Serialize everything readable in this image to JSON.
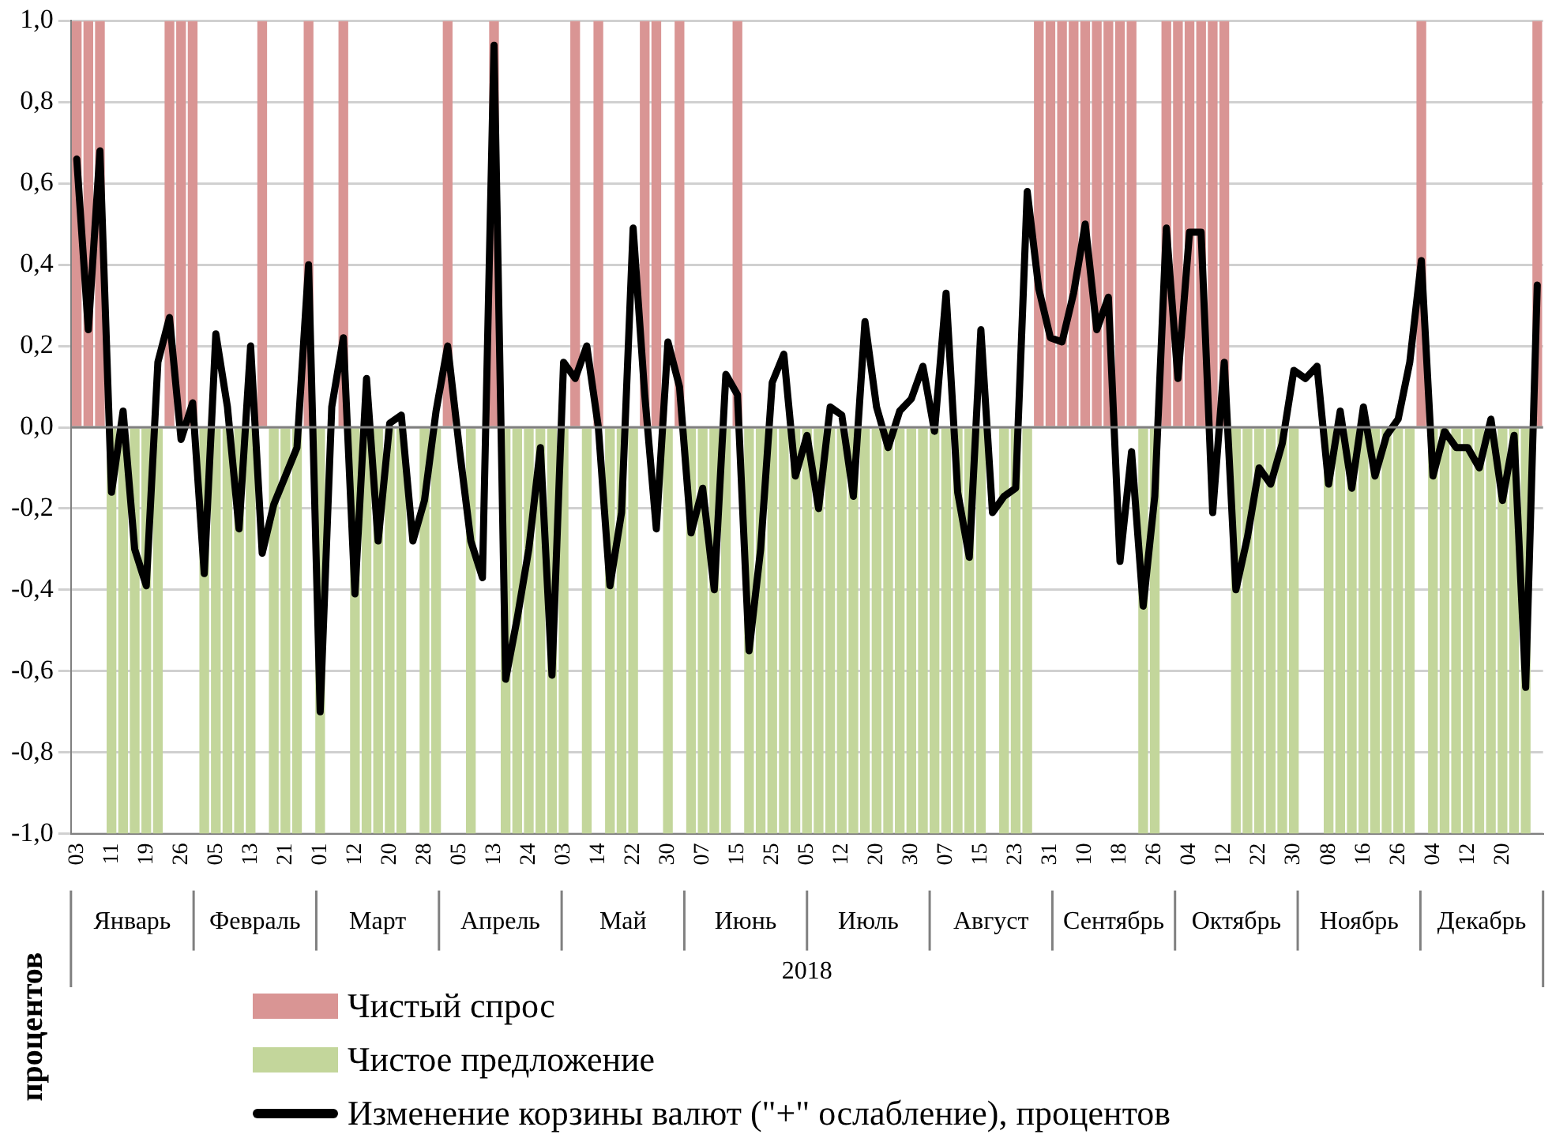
{
  "chart_data": {
    "type": "bar",
    "xlabel": "2018",
    "ylabel": "процентов",
    "categories": [
      "03",
      null,
      null,
      "11",
      null,
      null,
      "19",
      null,
      null,
      "26",
      null,
      null,
      "05",
      null,
      null,
      "13",
      null,
      null,
      "21",
      null,
      null,
      "01",
      null,
      null,
      "12",
      null,
      null,
      "20",
      null,
      null,
      "28",
      null,
      null,
      "05",
      null,
      null,
      "13",
      null,
      null,
      "24",
      null,
      null,
      "03",
      null,
      null,
      "14",
      null,
      null,
      "22",
      null,
      null,
      "30",
      null,
      null,
      "07",
      null,
      null,
      "15",
      null,
      null,
      "25",
      null,
      null,
      "05",
      null,
      null,
      "12",
      null,
      null,
      "20",
      null,
      null,
      "30",
      null,
      null,
      "07",
      null,
      null,
      "15",
      null,
      null,
      "23",
      null,
      null,
      "31",
      null,
      null,
      "10",
      null,
      null,
      "18",
      null,
      null,
      "26",
      null,
      null,
      "04",
      null,
      null,
      "12",
      null,
      null,
      "22",
      null,
      null,
      "30",
      null,
      null,
      "08",
      null,
      null,
      "16",
      null,
      null,
      "26",
      null,
      null,
      "04",
      null,
      null,
      "12",
      null,
      null,
      "20",
      null,
      null,
      null
    ],
    "series": [
      {
        "name": "Чистый спрос",
        "color": "#d99594",
        "values": [
          1,
          1,
          1,
          null,
          null,
          null,
          null,
          null,
          1,
          1,
          1,
          null,
          null,
          null,
          null,
          null,
          1,
          null,
          null,
          null,
          1,
          null,
          null,
          1,
          null,
          null,
          null,
          null,
          null,
          null,
          null,
          null,
          1,
          null,
          null,
          null,
          1,
          null,
          null,
          null,
          null,
          null,
          null,
          1,
          null,
          1,
          null,
          null,
          null,
          1,
          1,
          null,
          1,
          null,
          null,
          null,
          null,
          1,
          null,
          null,
          null,
          null,
          null,
          null,
          null,
          null,
          null,
          null,
          null,
          null,
          null,
          null,
          null,
          null,
          null,
          null,
          null,
          null,
          null,
          null,
          null,
          null,
          null,
          1,
          1,
          1,
          1,
          1,
          1,
          1,
          1,
          1,
          null,
          null,
          1,
          1,
          1,
          1,
          1,
          1,
          null,
          null,
          null,
          null,
          null,
          null,
          null,
          null,
          null,
          null,
          null,
          null,
          null,
          null,
          null,
          null,
          1,
          null,
          null,
          null,
          null,
          null,
          null,
          null,
          null,
          null,
          1
        ]
      },
      {
        "name": "Чистое предложение",
        "color": "#c3d69b",
        "values": [
          null,
          null,
          null,
          -1,
          -1,
          -1,
          -1,
          -1,
          null,
          null,
          null,
          -1,
          -1,
          -1,
          -1,
          -1,
          null,
          -1,
          -1,
          -1,
          null,
          -1,
          null,
          null,
          -1,
          -1,
          -1,
          -1,
          -1,
          null,
          -1,
          -1,
          null,
          null,
          -1,
          null,
          null,
          -1,
          -1,
          -1,
          -1,
          -1,
          -1,
          null,
          -1,
          null,
          -1,
          -1,
          -1,
          null,
          null,
          -1,
          null,
          -1,
          -1,
          -1,
          -1,
          null,
          -1,
          -1,
          -1,
          -1,
          -1,
          -1,
          -1,
          -1,
          -1,
          -1,
          -1,
          -1,
          -1,
          -1,
          -1,
          -1,
          -1,
          -1,
          -1,
          -1,
          -1,
          null,
          -1,
          -1,
          -1,
          null,
          null,
          null,
          null,
          null,
          null,
          null,
          null,
          null,
          -1,
          -1,
          null,
          null,
          null,
          null,
          null,
          null,
          -1,
          -1,
          -1,
          -1,
          -1,
          -1,
          null,
          null,
          -1,
          -1,
          -1,
          -1,
          -1,
          -1,
          -1,
          -1,
          null,
          -1,
          -1,
          -1,
          -1,
          -1,
          -1,
          -1,
          -1,
          -1,
          null
        ]
      },
      {
        "name": "Изменение корзины валют (\"+\" ослабление), процентов",
        "type": "line",
        "color": "#000000",
        "values": [
          0.66,
          0.24,
          0.68,
          -0.16,
          0.04,
          -0.3,
          -0.39,
          0.16,
          0.27,
          -0.03,
          0.06,
          -0.36,
          0.23,
          0.05,
          -0.25,
          0.2,
          -0.31,
          -0.19,
          -0.12,
          -0.05,
          0.4,
          -0.7,
          0.05,
          0.22,
          -0.41,
          0.12,
          -0.28,
          0.01,
          0.03,
          -0.28,
          -0.18,
          0.04,
          0.2,
          -0.05,
          -0.28,
          -0.37,
          0.94,
          -0.62,
          -0.47,
          -0.3,
          -0.05,
          -0.61,
          0.16,
          0.12,
          0.2,
          0.0,
          -0.39,
          -0.21,
          0.49,
          0.08,
          -0.25,
          0.21,
          0.1,
          -0.26,
          -0.15,
          -0.4,
          0.13,
          0.08,
          -0.55,
          -0.3,
          0.11,
          0.18,
          -0.12,
          -0.02,
          -0.2,
          0.05,
          0.03,
          -0.17,
          0.26,
          0.05,
          -0.05,
          0.04,
          0.07,
          0.15,
          -0.01,
          0.33,
          -0.16,
          -0.32,
          0.24,
          -0.21,
          -0.17,
          -0.15,
          0.58,
          0.34,
          0.22,
          0.21,
          0.33,
          0.5,
          0.24,
          0.32,
          -0.33,
          -0.06,
          -0.44,
          -0.17,
          0.49,
          0.12,
          0.48,
          0.48,
          -0.21,
          0.16,
          -0.4,
          -0.27,
          -0.1,
          -0.14,
          -0.04,
          0.14,
          0.12,
          0.15,
          -0.14,
          0.04,
          -0.15,
          0.05,
          -0.12,
          -0.02,
          0.02,
          0.16,
          0.41,
          -0.12,
          -0.01,
          -0.05,
          -0.05,
          -0.1,
          0.02,
          -0.18,
          -0.02,
          -0.64,
          0.35
        ]
      }
    ],
    "ylim": [
      -1,
      1
    ],
    "yticks": [
      {
        "value": -1,
        "label": "-1,0"
      },
      {
        "value": -0.8,
        "label": "-0,8"
      },
      {
        "value": -0.6,
        "label": "-0,6"
      },
      {
        "value": -0.4,
        "label": "-0,4"
      },
      {
        "value": -0.2,
        "label": "-0,2"
      },
      {
        "value": 0,
        "label": "0,0"
      },
      {
        "value": 0.2,
        "label": "0,2"
      },
      {
        "value": 0.4,
        "label": "0,4"
      },
      {
        "value": 0.6,
        "label": "0,6"
      },
      {
        "value": 0.8,
        "label": "0,8"
      },
      {
        "value": 1,
        "label": "1,0"
      }
    ],
    "grid": "y",
    "legend": "bottom",
    "marker": "none",
    "line_style": "solid",
    "annotations": [
      "Январь",
      "Февраль",
      "Март",
      "Апрель",
      "Май",
      "Июнь",
      "Июль",
      "Август",
      "Сентябрь",
      "Октябрь",
      "Ноябрь",
      "Декабрь"
    ]
  }
}
